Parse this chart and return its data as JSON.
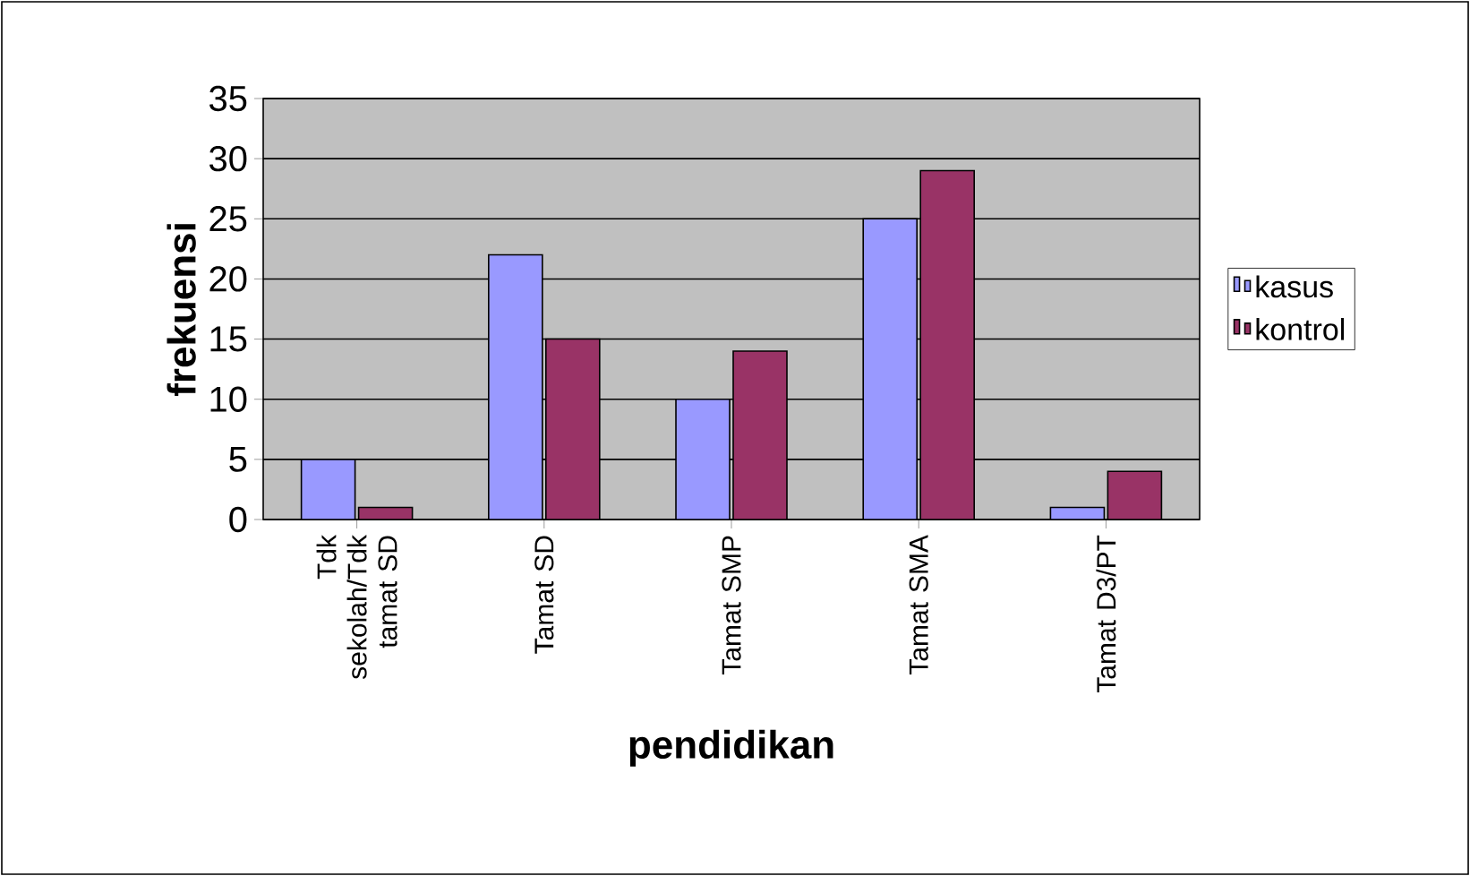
{
  "chart_data": {
    "type": "bar",
    "xlabel": "pendidikan",
    "ylabel": "frekuensi",
    "categories": [
      "Tdk sekolah/Tdk tamat SD",
      "Tamat SD",
      "Tamat SMP",
      "Tamat SMA",
      "Tamat D3/PT"
    ],
    "series": [
      {
        "name": "kasus",
        "color": "#9999ff",
        "values": [
          5,
          22,
          10,
          25,
          1
        ]
      },
      {
        "name": "kontrol",
        "color": "#993366",
        "values": [
          1,
          15,
          14,
          29,
          4
        ]
      }
    ],
    "ylim": [
      0,
      35
    ],
    "yticks": [
      0,
      5,
      10,
      15,
      20,
      25,
      30,
      35
    ],
    "grid": "y",
    "legend": "right"
  }
}
